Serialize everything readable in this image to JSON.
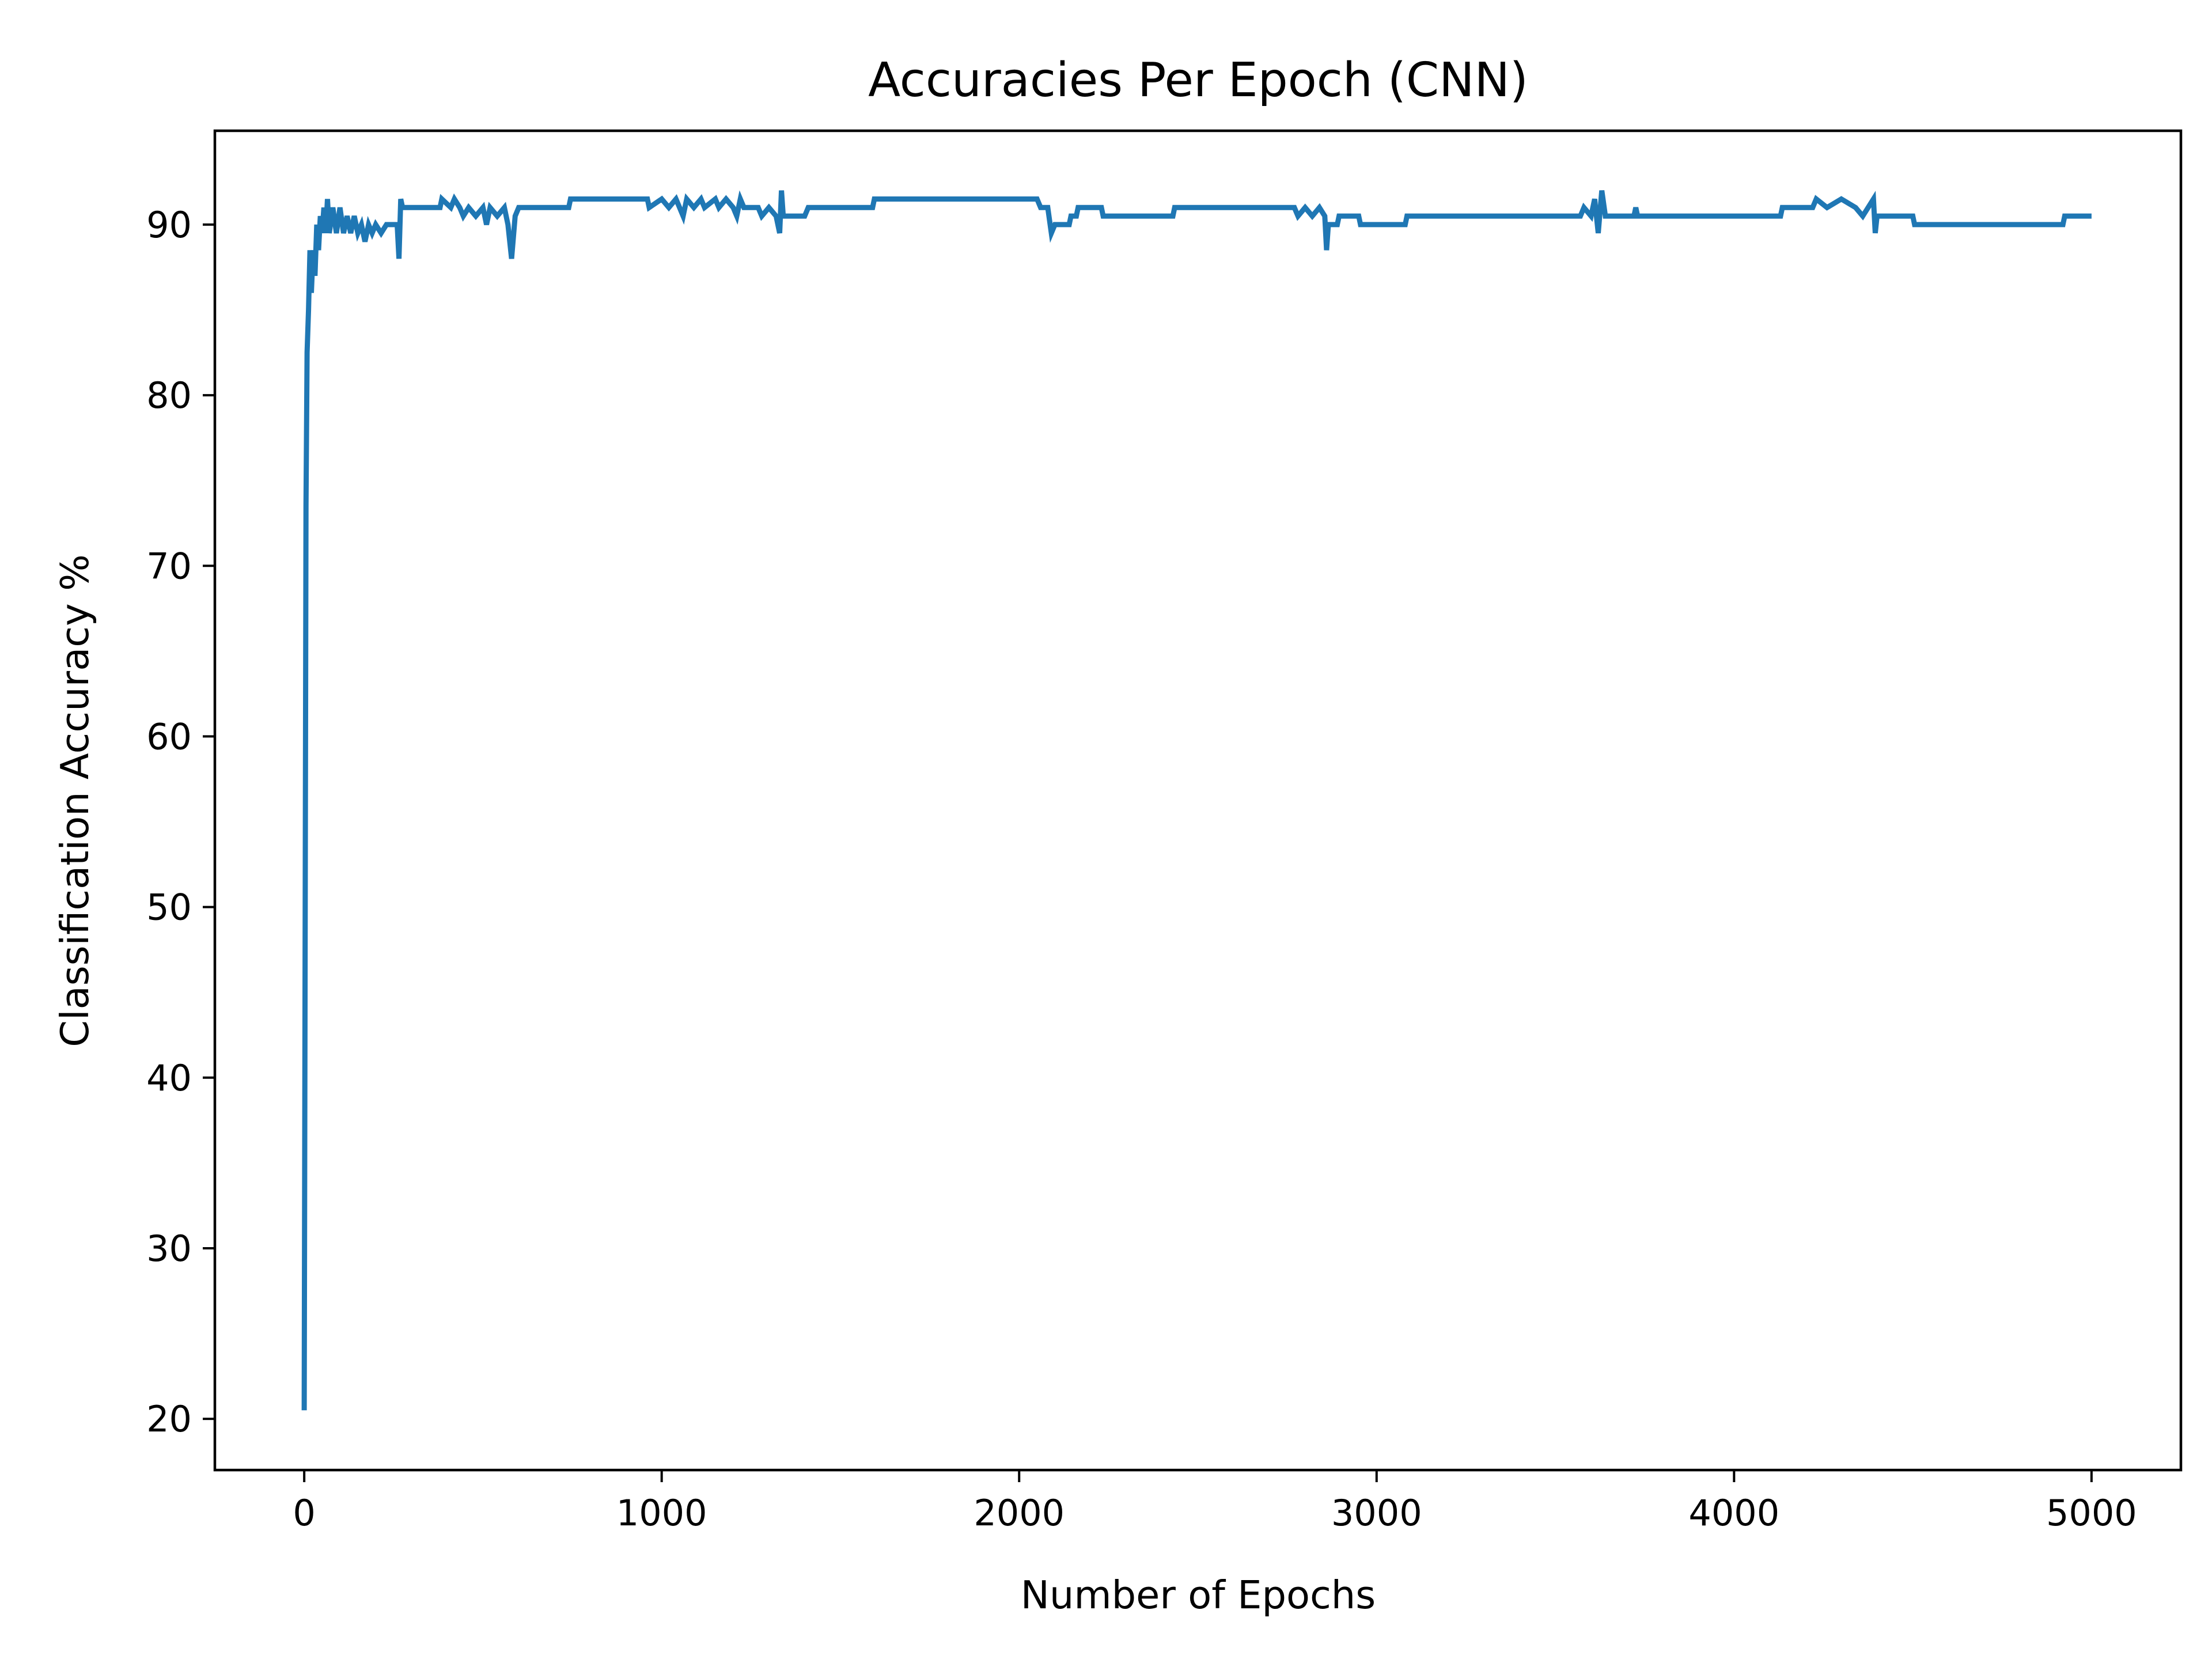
{
  "chart_data": {
    "type": "line",
    "title": "Accuracies Per Epoch (CNN)",
    "xlabel": "Number of Epochs",
    "ylabel": "Classification Accuracy %",
    "xlim": [
      -250,
      5250
    ],
    "ylim": [
      17,
      95.5
    ],
    "xticks": [
      0,
      1000,
      2000,
      3000,
      4000,
      5000
    ],
    "yticks": [
      20,
      30,
      40,
      50,
      60,
      70,
      80,
      90
    ],
    "grid": false,
    "legend": "none",
    "series": [
      {
        "color": "#1f77b4",
        "points": [
          [
            0,
            20.5
          ],
          [
            5,
            73.5
          ],
          [
            8,
            82.5
          ],
          [
            12,
            85.0
          ],
          [
            16,
            88.5
          ],
          [
            20,
            86.0
          ],
          [
            25,
            88.5
          ],
          [
            30,
            87.0
          ],
          [
            35,
            90.0
          ],
          [
            40,
            88.5
          ],
          [
            45,
            90.5
          ],
          [
            50,
            89.5
          ],
          [
            55,
            91.0
          ],
          [
            60,
            89.5
          ],
          [
            65,
            91.5
          ],
          [
            70,
            89.5
          ],
          [
            80,
            91.0
          ],
          [
            90,
            89.5
          ],
          [
            100,
            91.0
          ],
          [
            110,
            89.5
          ],
          [
            120,
            90.5
          ],
          [
            130,
            89.5
          ],
          [
            140,
            90.5
          ],
          [
            150,
            89.5
          ],
          [
            160,
            90.0
          ],
          [
            170,
            89.0
          ],
          [
            180,
            90.0
          ],
          [
            190,
            89.5
          ],
          [
            200,
            90.0
          ],
          [
            215,
            89.5
          ],
          [
            230,
            90.0
          ],
          [
            260,
            90.0
          ],
          [
            265,
            88.0
          ],
          [
            270,
            91.5
          ],
          [
            275,
            91.0
          ],
          [
            380,
            91.0
          ],
          [
            385,
            91.5
          ],
          [
            410,
            91.0
          ],
          [
            420,
            91.5
          ],
          [
            435,
            91.0
          ],
          [
            445,
            90.5
          ],
          [
            460,
            91.0
          ],
          [
            480,
            90.5
          ],
          [
            500,
            91.0
          ],
          [
            510,
            90.0
          ],
          [
            520,
            91.0
          ],
          [
            540,
            90.5
          ],
          [
            560,
            91.0
          ],
          [
            570,
            90.0
          ],
          [
            580,
            88.0
          ],
          [
            590,
            90.5
          ],
          [
            600,
            91.0
          ],
          [
            740,
            91.0
          ],
          [
            745,
            91.5
          ],
          [
            960,
            91.5
          ],
          [
            965,
            91.0
          ],
          [
            1000,
            91.5
          ],
          [
            1020,
            91.0
          ],
          [
            1040,
            91.5
          ],
          [
            1050,
            91.0
          ],
          [
            1060,
            90.5
          ],
          [
            1070,
            91.5
          ],
          [
            1090,
            91.0
          ],
          [
            1110,
            91.5
          ],
          [
            1120,
            91.0
          ],
          [
            1150,
            91.5
          ],
          [
            1160,
            91.0
          ],
          [
            1180,
            91.5
          ],
          [
            1200,
            91.0
          ],
          [
            1210,
            90.5
          ],
          [
            1220,
            91.5
          ],
          [
            1230,
            91.0
          ],
          [
            1270,
            91.0
          ],
          [
            1280,
            90.5
          ],
          [
            1300,
            91.0
          ],
          [
            1320,
            90.5
          ],
          [
            1330,
            89.5
          ],
          [
            1335,
            92.0
          ],
          [
            1340,
            90.5
          ],
          [
            1400,
            90.5
          ],
          [
            1410,
            91.0
          ],
          [
            1590,
            91.0
          ],
          [
            1595,
            91.5
          ],
          [
            2050,
            91.5
          ],
          [
            2060,
            91.0
          ],
          [
            2080,
            91.0
          ],
          [
            2090,
            89.5
          ],
          [
            2100,
            90.0
          ],
          [
            2140,
            90.0
          ],
          [
            2145,
            90.5
          ],
          [
            2160,
            90.5
          ],
          [
            2165,
            91.0
          ],
          [
            2230,
            91.0
          ],
          [
            2235,
            90.5
          ],
          [
            2430,
            90.5
          ],
          [
            2435,
            91.0
          ],
          [
            2770,
            91.0
          ],
          [
            2780,
            90.5
          ],
          [
            2800,
            91.0
          ],
          [
            2820,
            90.5
          ],
          [
            2840,
            91.0
          ],
          [
            2855,
            90.5
          ],
          [
            2860,
            88.5
          ],
          [
            2865,
            90.0
          ],
          [
            2890,
            90.0
          ],
          [
            2895,
            90.5
          ],
          [
            2950,
            90.5
          ],
          [
            2955,
            90.0
          ],
          [
            3080,
            90.0
          ],
          [
            3085,
            90.5
          ],
          [
            3570,
            90.5
          ],
          [
            3580,
            91.0
          ],
          [
            3600,
            90.5
          ],
          [
            3610,
            91.5
          ],
          [
            3620,
            89.5
          ],
          [
            3630,
            92.0
          ],
          [
            3640,
            90.5
          ],
          [
            3720,
            90.5
          ],
          [
            3725,
            91.0
          ],
          [
            3730,
            90.5
          ],
          [
            4130,
            90.5
          ],
          [
            4135,
            91.0
          ],
          [
            4220,
            91.0
          ],
          [
            4230,
            91.5
          ],
          [
            4260,
            91.0
          ],
          [
            4300,
            91.5
          ],
          [
            4340,
            91.0
          ],
          [
            4360,
            90.5
          ],
          [
            4390,
            91.5
          ],
          [
            4395,
            89.5
          ],
          [
            4400,
            90.5
          ],
          [
            4500,
            90.5
          ],
          [
            4505,
            90.0
          ],
          [
            4920,
            90.0
          ],
          [
            4925,
            90.5
          ],
          [
            5000,
            90.5
          ]
        ]
      }
    ]
  }
}
